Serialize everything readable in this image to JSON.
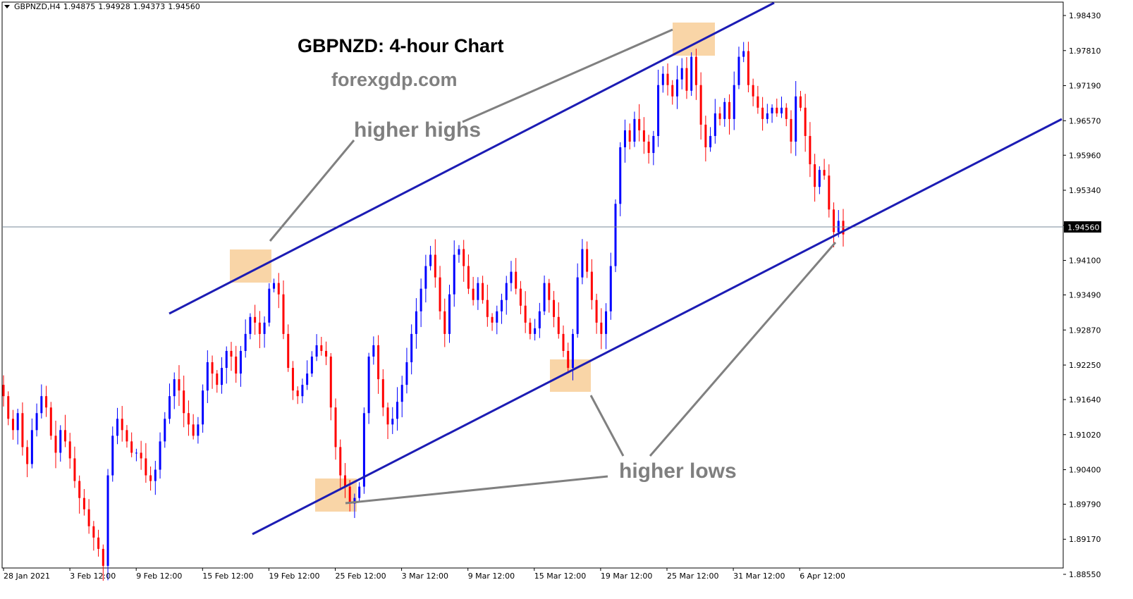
{
  "header": {
    "symbol": "GBPNZD,H4",
    "open": "1.94875",
    "high": "1.94928",
    "low": "1.94373",
    "close": "1.94560"
  },
  "title": "GBPNZD: 4-hour Chart",
  "website": "forexgdp.com",
  "annotations": {
    "higher_highs": "higher highs",
    "higher_lows": "higher lows"
  },
  "colors": {
    "bull": "#0000ff",
    "bear": "#ff0000",
    "trendline": "#1c1cb4",
    "highlight": "#f9d5a7",
    "pointer": "#808080",
    "price_line": "#778899"
  },
  "chart_data": {
    "type": "candlestick",
    "symbol": "GBPNZD",
    "timeframe": "H4",
    "ylim": [
      1.8855,
      1.98642
    ],
    "y_ticks": [
      "1.98430",
      "1.97810",
      "1.97190",
      "1.96570",
      "1.95960",
      "1.95340",
      "1.94720",
      "1.94100",
      "1.93490",
      "1.92870",
      "1.92250",
      "1.91640",
      "1.91020",
      "1.90400",
      "1.89790",
      "1.89170",
      "1.88550"
    ],
    "x_ticks": [
      "28 Jan 2021",
      "3 Feb 12:00",
      "9 Feb 12:00",
      "15 Feb 12:00",
      "19 Feb 12:00",
      "25 Feb 12:00",
      "3 Mar 12:00",
      "9 Mar 12:00",
      "15 Mar 12:00",
      "19 Mar 12:00",
      "25 Mar 12:00",
      "31 Mar 12:00",
      "6 Apr 12:00"
    ],
    "current_price": 1.9456,
    "current_price_label": "1.94560",
    "closes": [
      1.917,
      1.913,
      1.911,
      1.914,
      1.908,
      1.905,
      1.911,
      1.914,
      1.917,
      1.915,
      1.91,
      1.907,
      1.911,
      1.909,
      1.906,
      1.902,
      1.899,
      1.897,
      1.894,
      1.892,
      1.89,
      1.887,
      1.903,
      1.91,
      1.913,
      1.911,
      1.909,
      1.907,
      1.907,
      1.906,
      1.903,
      1.902,
      1.904,
      1.909,
      1.913,
      1.917,
      1.92,
      1.918,
      1.914,
      1.912,
      1.91,
      1.912,
      1.918,
      1.923,
      1.921,
      1.919,
      1.922,
      1.925,
      1.924,
      1.921,
      1.925,
      1.928,
      1.931,
      1.93,
      1.928,
      1.93,
      1.936,
      1.937,
      1.935,
      1.928,
      1.922,
      1.918,
      1.917,
      1.919,
      1.921,
      1.924,
      1.926,
      1.925,
      1.924,
      1.915,
      1.908,
      1.903,
      1.901,
      1.898,
      1.899,
      1.901,
      1.914,
      1.924,
      1.926,
      1.92,
      1.915,
      1.912,
      1.913,
      1.916,
      1.919,
      1.923,
      1.928,
      1.932,
      1.936,
      1.94,
      1.942,
      1.938,
      1.932,
      1.928,
      1.935,
      1.942,
      1.943,
      1.94,
      1.936,
      1.934,
      1.937,
      1.934,
      1.931,
      1.93,
      1.932,
      1.934,
      1.937,
      1.939,
      1.936,
      1.933,
      1.93,
      1.928,
      1.929,
      1.932,
      1.937,
      1.934,
      1.931,
      1.928,
      1.925,
      1.922,
      1.928,
      1.938,
      1.943,
      1.939,
      1.934,
      1.93,
      1.928,
      1.932,
      1.94,
      1.951,
      1.961,
      1.964,
      1.962,
      1.966,
      1.964,
      1.962,
      1.96,
      1.963,
      1.972,
      1.974,
      1.972,
      1.97,
      1.973,
      1.975,
      1.971,
      1.977,
      1.972,
      1.965,
      1.961,
      1.963,
      1.967,
      1.966,
      1.969,
      1.966,
      1.972,
      1.977,
      1.978,
      1.972,
      1.97,
      1.968,
      1.966,
      1.967,
      1.968,
      1.967,
      1.968,
      1.966,
      1.962,
      1.97,
      1.968,
      1.963,
      1.958,
      1.954,
      1.957,
      1.956,
      1.95,
      1.946,
      1.948,
      1.9456
    ]
  }
}
